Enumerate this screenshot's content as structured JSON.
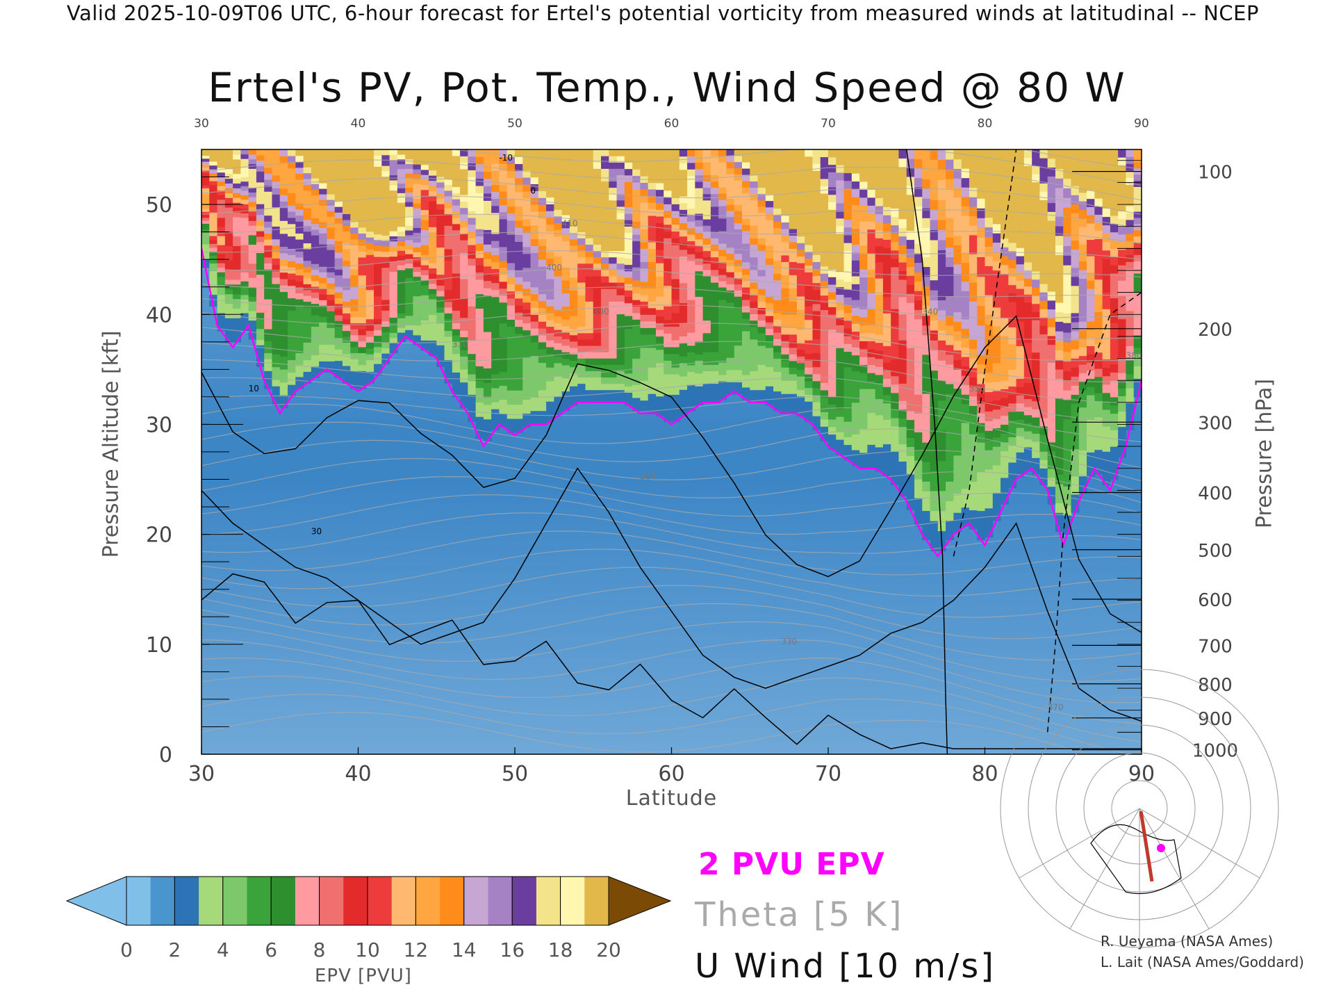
{
  "header": "Valid 2025-10-09T06 UTC, 6-hour forecast for Ertel's potential vorticity from measured winds at latitudinal -- NCEP",
  "colors": {
    "pv_contour": "#ff00ff",
    "theta": "#aaaaaa",
    "wind": "#000000"
  },
  "chart_data": {
    "type": "heatmap",
    "title": "Ertel's PV, Pot. Temp., Wind Speed @ 80 W",
    "xlabel": "Latitude",
    "ylabel": "Pressure Altitude [kft]",
    "y2label": "Pressure [hPa]",
    "xlim": [
      30,
      90
    ],
    "ylim": [
      0,
      55
    ],
    "x_ticks": [
      30,
      40,
      50,
      60,
      70,
      80,
      90
    ],
    "y_ticks": [
      0,
      10,
      20,
      30,
      40,
      50
    ],
    "pressure_ticks": [
      {
        "label": "100",
        "kft": 53
      },
      {
        "label": "200",
        "kft": 38.7
      },
      {
        "label": "300",
        "kft": 30.2
      },
      {
        "label": "400",
        "kft": 23.8
      },
      {
        "label": "500",
        "kft": 18.6
      },
      {
        "label": "600",
        "kft": 14.1
      },
      {
        "label": "700",
        "kft": 9.9
      },
      {
        "label": "800",
        "kft": 6.4
      },
      {
        "label": "900",
        "kft": 3.3
      },
      {
        "label": "1000",
        "kft": 0.4
      }
    ],
    "tropopause_2pvu": {
      "lat": [
        30,
        31,
        32,
        33,
        34,
        35,
        36,
        37,
        38,
        39,
        40,
        41,
        42,
        43,
        44,
        45,
        46,
        47,
        48,
        49,
        50,
        51,
        52,
        53,
        54,
        55,
        56,
        57,
        58,
        59,
        60,
        61,
        62,
        63,
        64,
        65,
        66,
        67,
        68,
        69,
        70,
        71,
        72,
        73,
        74,
        75,
        76,
        77,
        78,
        79,
        80,
        81,
        82,
        83,
        84,
        85,
        86,
        87,
        88,
        89,
        90
      ],
      "kft": [
        46,
        39,
        37,
        39,
        34,
        31,
        33,
        34,
        35,
        34,
        33,
        34,
        36,
        38,
        37,
        36,
        33,
        31,
        28,
        30,
        29,
        30,
        30,
        31,
        32,
        32,
        32,
        32,
        31,
        31,
        30,
        31,
        32,
        32,
        33,
        32,
        32,
        31,
        31,
        30,
        28,
        27,
        26,
        26,
        25,
        23,
        20,
        18,
        20,
        21,
        19,
        22,
        25,
        26,
        24,
        19,
        23,
        26,
        24,
        28,
        34
      ]
    },
    "wind_contours": {
      "lat": [
        30,
        32,
        34,
        36,
        38,
        40,
        42,
        44,
        46,
        48,
        50,
        52,
        54,
        56,
        58,
        60,
        62,
        64,
        66,
        68,
        70,
        72,
        74,
        76,
        78,
        80,
        82,
        84,
        86,
        88,
        90
      ],
      "jet_10ms_kft": [
        24,
        21,
        19,
        17,
        16,
        14,
        12,
        10,
        11,
        12,
        16,
        21,
        26,
        22,
        17,
        13,
        9,
        7,
        6,
        7,
        8,
        9,
        11,
        12,
        14,
        17,
        21,
        13,
        6,
        4,
        3
      ]
    },
    "epv_levels": [
      0,
      2,
      4,
      6,
      8,
      10,
      12,
      14,
      16,
      18,
      20
    ],
    "colorbar_label": "EPV [PVU]",
    "legend": [
      "2 PVU EPV",
      "Theta [5 K]",
      "U Wind [10 m/s]"
    ],
    "axis_annotations": [
      "10",
      "30",
      "310",
      "320",
      "330",
      "340",
      "350",
      "370",
      "380",
      "390",
      "400",
      "410",
      "0",
      "-10"
    ]
  },
  "legend": {
    "pv": "2 PVU EPV",
    "theta": "Theta [5 K]",
    "wind": "U Wind [10 m/s]"
  },
  "credits": {
    "line1": "R. Ueyama (NASA Ames)",
    "line2": "L. Lait (NASA Ames/Goddard)"
  }
}
